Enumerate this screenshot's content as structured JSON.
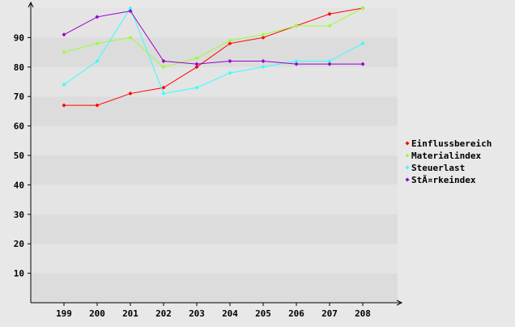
{
  "chart_data": {
    "type": "line",
    "title": "",
    "xlabel": "",
    "ylabel": "",
    "categories": [
      "199",
      "200",
      "201",
      "202",
      "203",
      "204",
      "205",
      "206",
      "207",
      "208"
    ],
    "ylim": [
      0,
      100
    ],
    "yticks": [
      10,
      20,
      30,
      40,
      50,
      60,
      70,
      80,
      90
    ],
    "grid": "alternating horizontal bands",
    "legend_position": "right",
    "series": [
      {
        "name": "Einflussbereich",
        "color": "#ff0000",
        "values": [
          67,
          67,
          71,
          73,
          80,
          88,
          90,
          94,
          98,
          100
        ]
      },
      {
        "name": "Materialindex",
        "color": "#99ff33",
        "values": [
          85,
          88,
          90,
          80,
          83,
          89,
          91,
          94,
          94,
          100
        ]
      },
      {
        "name": "Steuerlast",
        "color": "#33ffff",
        "values": [
          74,
          82,
          100,
          71,
          73,
          78,
          80,
          82,
          82,
          88
        ]
      },
      {
        "name": "StÃ¤rkeindex",
        "color": "#9900cc",
        "values": [
          91,
          97,
          99,
          82,
          81,
          82,
          82,
          81,
          81,
          81
        ]
      }
    ]
  }
}
